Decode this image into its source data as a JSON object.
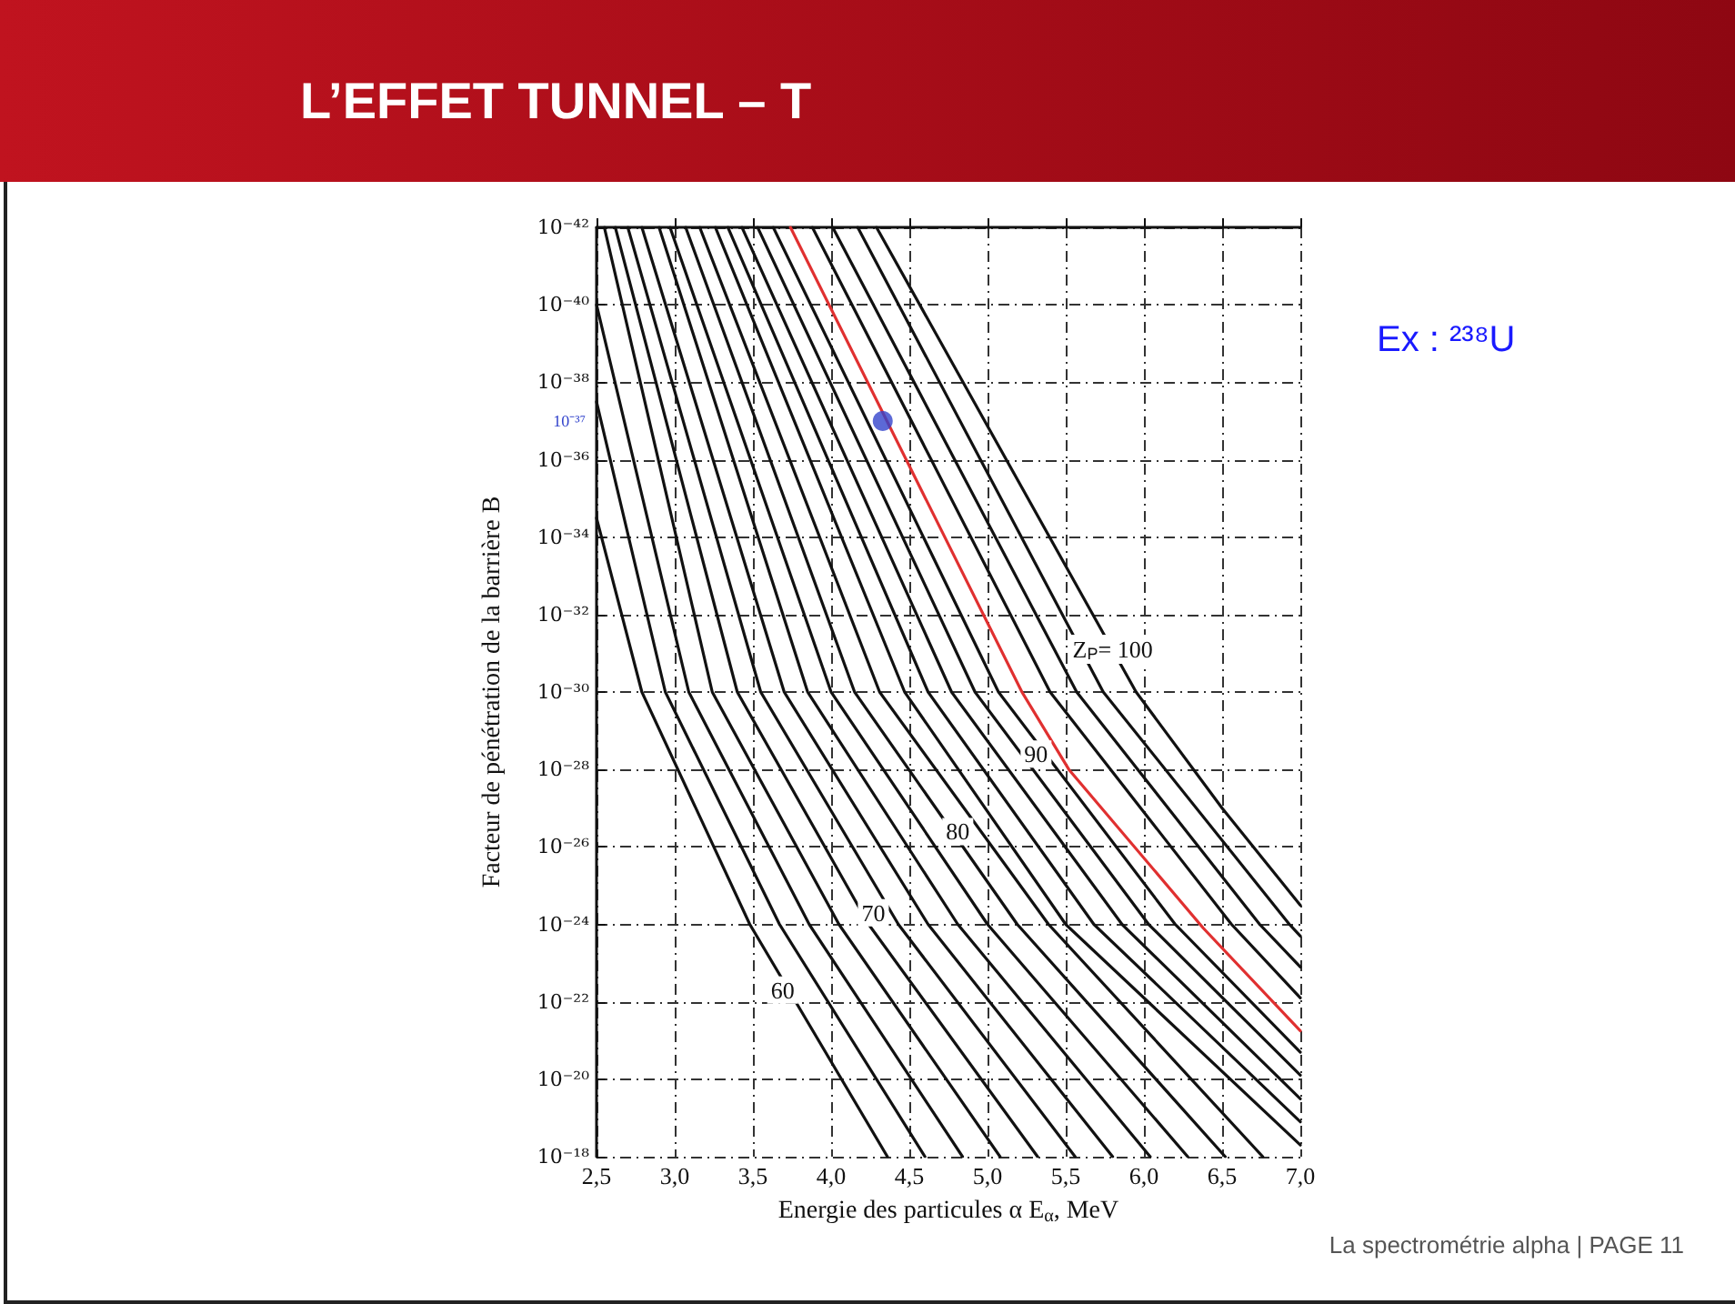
{
  "chart_data": {
    "type": "line",
    "title": "L’EFFET TUNNEL – T",
    "xlabel": "Energie des particules α E$_{α}$, MeV",
    "ylabel": "Facteur de pénétration de la barrière B",
    "log": "y",
    "grid": true,
    "marker": "none",
    "line_style": "solid",
    "xlim": [
      2.5,
      7.0
    ],
    "xticks": [
      {
        "value": 2.5,
        "label": "2,5"
      },
      {
        "value": 3.0,
        "label": "3,0"
      },
      {
        "value": 3.5,
        "label": "3,5"
      },
      {
        "value": 4.0,
        "label": "4,0"
      },
      {
        "value": 4.5,
        "label": "4,5"
      },
      {
        "value": 5.0,
        "label": "5,0"
      },
      {
        "value": 5.5,
        "label": "5,5"
      },
      {
        "value": 6.0,
        "label": "6,0"
      },
      {
        "value": 6.5,
        "label": "6,5"
      },
      {
        "value": 7.0,
        "label": "7,0"
      }
    ],
    "ylim": [
      1e-18,
      1e-42
    ],
    "yticks": [
      {
        "value": 1e-42,
        "label": "10⁻⁴²"
      },
      {
        "value": 1e-40,
        "label": "10⁻⁴⁰"
      },
      {
        "value": 1e-38,
        "label": "10⁻³⁸"
      },
      {
        "value": 1e-36,
        "label": "10⁻³⁶"
      },
      {
        "value": 1e-34,
        "label": "10⁻³⁴"
      },
      {
        "value": 1e-32,
        "label": "10⁻³²"
      },
      {
        "value": 1e-30,
        "label": "10⁻³⁰"
      },
      {
        "value": 1e-28,
        "label": "10⁻²⁸"
      },
      {
        "value": 1e-26,
        "label": "10⁻²⁶"
      },
      {
        "value": 1e-24,
        "label": "10⁻²⁴"
      },
      {
        "value": 1e-22,
        "label": "10⁻²²"
      },
      {
        "value": 1e-20,
        "label": "10⁻²⁰"
      },
      {
        "value": 1e-18,
        "label": "10⁻¹⁸"
      }
    ],
    "series": [
      {
        "color": "#111111",
        "x": [
          2.5,
          2.79,
          3.48,
          4.36
        ],
        "values": [
          3.2e-35,
          1e-30,
          1e-24,
          1e-18
        ]
      },
      {
        "color": "#111111",
        "x": [
          2.5,
          2.94,
          3.67,
          4.6
        ],
        "values": [
          3.2e-38,
          1e-30,
          1e-24,
          1e-18
        ]
      },
      {
        "color": "#111111",
        "x": [
          2.5,
          3.09,
          3.86,
          4.84
        ],
        "values": [
          1e-40,
          1e-30,
          1e-24,
          1e-18
        ]
      },
      {
        "color": "#111111",
        "x": [
          2.55,
          3.24,
          4.05,
          5.08
        ],
        "values": [
          1e-42,
          1e-30,
          1e-24,
          1e-18
        ]
      },
      {
        "color": "#111111",
        "x": [
          2.62,
          3.4,
          4.24,
          5.32
        ],
        "values": [
          1e-42,
          1e-30,
          1e-24,
          1e-18
        ]
      },
      {
        "color": "#111111",
        "x": [
          2.7,
          3.55,
          4.43,
          5.56
        ],
        "values": [
          1e-42,
          1e-30,
          1e-24,
          1e-18
        ]
      },
      {
        "color": "#111111",
        "x": [
          2.79,
          3.7,
          4.62,
          5.8
        ],
        "values": [
          1e-42,
          1e-30,
          1e-24,
          1e-18
        ]
      },
      {
        "color": "#111111",
        "x": [
          2.9,
          3.85,
          4.81,
          6.04
        ],
        "values": [
          1e-42,
          1e-30,
          1e-24,
          1e-18
        ]
      },
      {
        "color": "#111111",
        "x": [
          2.97,
          4.0,
          5.0,
          6.28
        ],
        "values": [
          1e-42,
          1e-30,
          1e-24,
          1e-18
        ]
      },
      {
        "color": "#111111",
        "x": [
          3.07,
          4.15,
          5.19,
          6.52
        ],
        "values": [
          1e-42,
          1e-30,
          1e-24,
          1e-18
        ]
      },
      {
        "color": "#111111",
        "x": [
          3.16,
          4.31,
          5.39,
          6.76
        ],
        "values": [
          1e-42,
          1e-30,
          1e-24,
          1e-18
        ]
      },
      {
        "color": "#111111",
        "x": [
          3.26,
          4.47,
          5.5,
          7.0
        ],
        "values": [
          1e-42,
          1e-30,
          1e-24,
          5e-19
        ]
      },
      {
        "color": "#111111",
        "x": [
          3.34,
          4.62,
          5.68,
          7.0
        ],
        "values": [
          1e-42,
          1e-30,
          1e-24,
          1.26e-19
        ]
      },
      {
        "color": "#111111",
        "x": [
          3.43,
          4.77,
          5.86,
          7.0
        ],
        "values": [
          1e-42,
          1e-30,
          1e-24,
          3.2e-20
        ]
      },
      {
        "color": "#111111",
        "x": [
          3.53,
          4.92,
          6.03,
          7.0
        ],
        "values": [
          1e-42,
          1e-30,
          1e-24,
          7.9e-21
        ]
      },
      {
        "color": "#111111",
        "x": [
          3.63,
          5.07,
          6.2,
          7.0
        ],
        "values": [
          1e-42,
          1e-30,
          1e-24,
          2e-21
        ]
      },
      {
        "color": "#e03030",
        "x": [
          3.74,
          5.22,
          5.52,
          6.38,
          7.0
        ],
        "values": [
          1e-42,
          1e-30,
          1e-28,
          1.26e-24,
          5.6e-22
        ]
      },
      {
        "color": "#111111",
        "x": [
          3.88,
          5.4,
          6.56,
          7.0
        ],
        "values": [
          1e-42,
          1e-30,
          1e-24,
          7.9e-23
        ]
      },
      {
        "color": "#111111",
        "x": [
          4.01,
          5.57,
          6.74,
          7.0
        ],
        "values": [
          1e-42,
          1e-30,
          1e-24,
          1.26e-23
        ]
      },
      {
        "color": "#111111",
        "x": [
          4.17,
          5.74,
          6.93,
          7.0
        ],
        "values": [
          1e-42,
          1e-30,
          1e-24,
          2e-24
        ]
      },
      {
        "color": "#111111",
        "x": [
          4.29,
          5.95,
          6.5,
          7.0
        ],
        "values": [
          1e-42,
          1e-30,
          1e-27,
          3.2e-25
        ]
      },
      {
        "type": "scatter",
        "marker": "circle",
        "color": "#3344cc",
        "x": [
          4.33
        ],
        "values": [
          1e-37
        ]
      }
    ],
    "annotations": [
      {
        "text": "Z$_{P}$= 100",
        "x": 5.8,
        "y": 7.9e-32
      },
      {
        "text": "90",
        "x": 5.31,
        "y": 4e-29
      },
      {
        "text": "80",
        "x": 4.81,
        "y": 4e-27
      },
      {
        "text": "70",
        "x": 4.27,
        "y": 5e-25
      },
      {
        "text": "60",
        "x": 3.69,
        "y": 5e-23
      },
      {
        "text": "10⁻³⁷",
        "x": 2.5,
        "y": 1e-37
      },
      "Ex : ²³⁸U",
      "La spectrométrie alpha | PAGE 11"
    ]
  }
}
